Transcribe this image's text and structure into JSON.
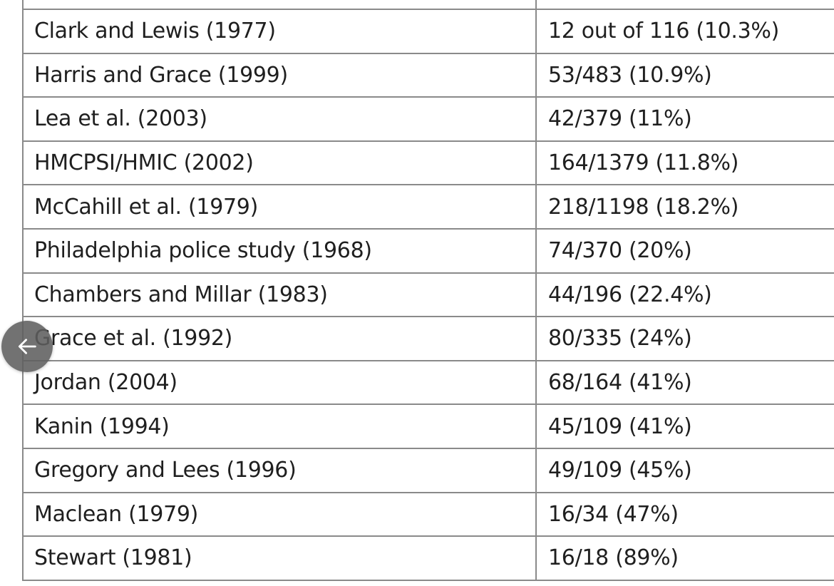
{
  "table": {
    "rows": [
      {
        "study": "Clark and Lewis (1977)",
        "rate": "12 out of 116 (10.3%)"
      },
      {
        "study": "Harris and Grace (1999)",
        "rate": "53/483 (10.9%)"
      },
      {
        "study": "Lea et al. (2003)",
        "rate": "42/379 (11%)"
      },
      {
        "study": "HMCPSI/HMIC (2002)",
        "rate": "164/1379 (11.8%)"
      },
      {
        "study": "McCahill et al. (1979)",
        "rate": "218/1198 (18.2%)"
      },
      {
        "study": "Philadelphia police study (1968)",
        "rate": "74/370 (20%)"
      },
      {
        "study": "Chambers and Millar (1983)",
        "rate": "44/196 (22.4%)"
      },
      {
        "study": "Grace et al. (1992)",
        "rate": "80/335 (24%)"
      },
      {
        "study": "Jordan (2004)",
        "rate": "68/164 (41%)"
      },
      {
        "study": "Kanin (1994)",
        "rate": "45/109 (41%)"
      },
      {
        "study": "Gregory and Lees (1996)",
        "rate": "49/109 (45%)"
      },
      {
        "study": "Maclean (1979)",
        "rate": "16/34 (47%)"
      },
      {
        "study": "Stewart (1981)",
        "rate": "16/18 (89%)"
      }
    ]
  },
  "back_button": {
    "icon": "arrow-left-icon"
  }
}
